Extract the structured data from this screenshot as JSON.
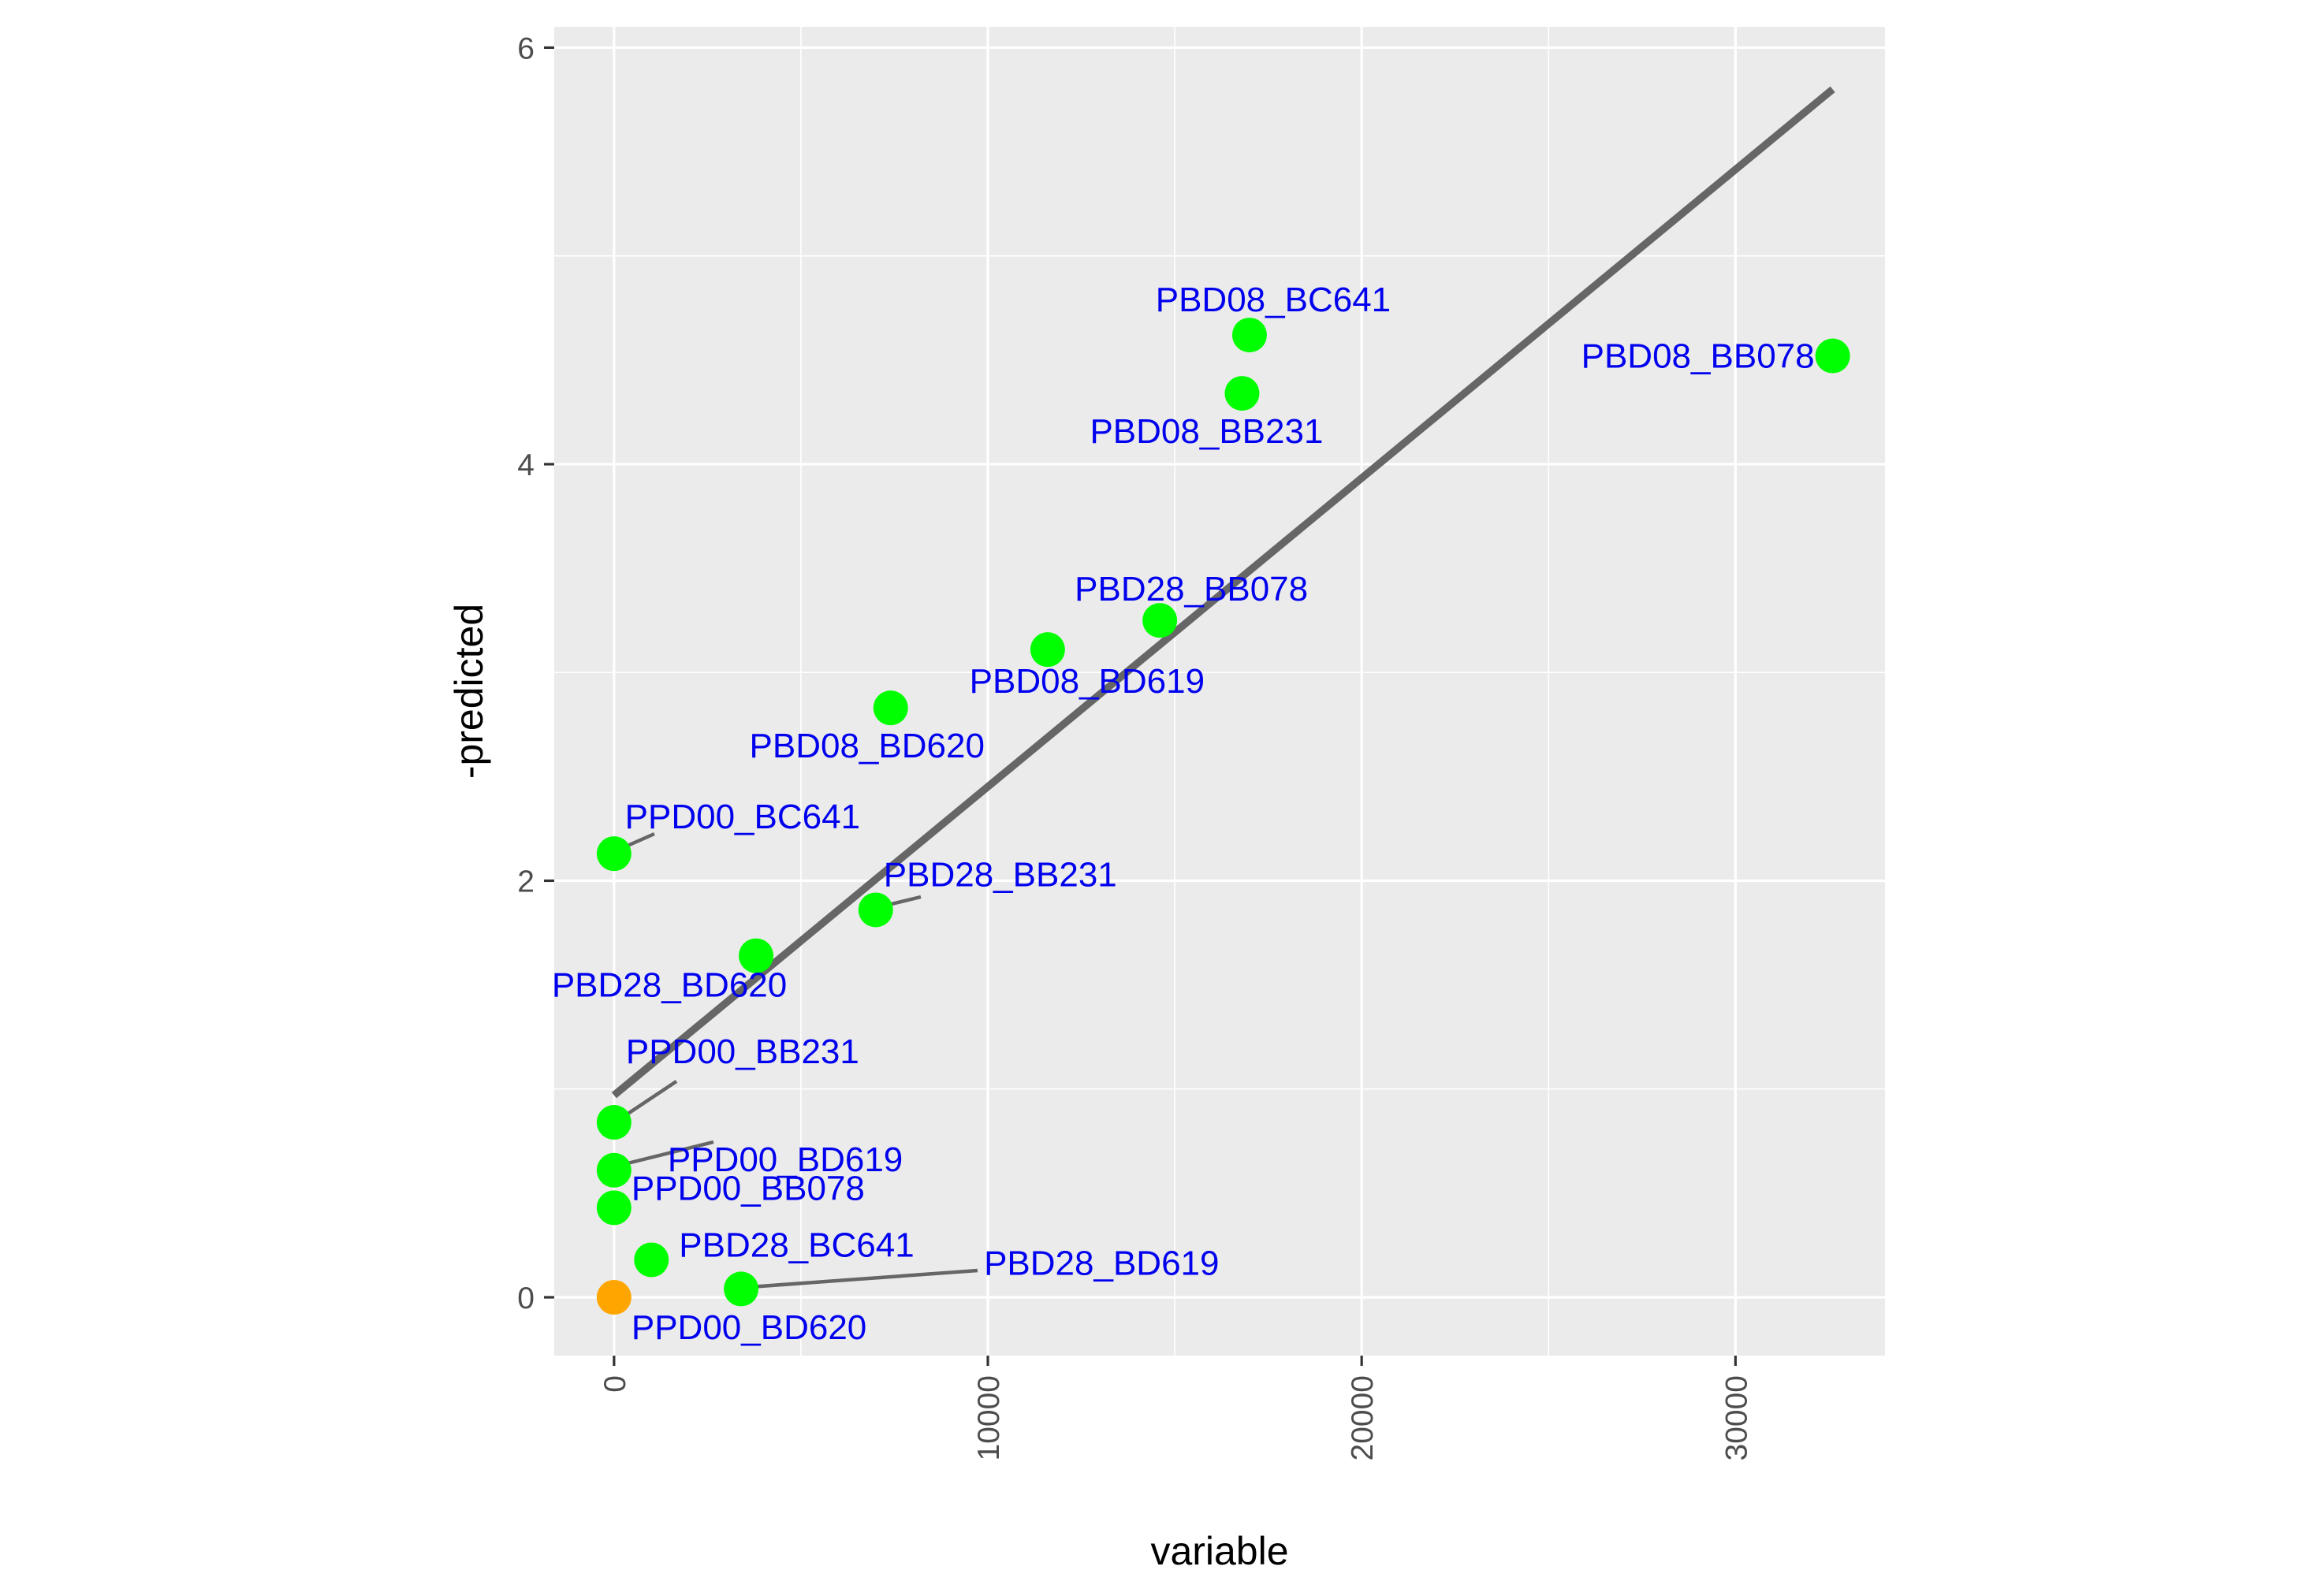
{
  "chart_data": {
    "type": "scatter",
    "title": "",
    "xlabel": "variable",
    "ylabel": "-predicted",
    "xlim": [
      -1600,
      34000
    ],
    "ylim": [
      -0.28,
      6.1
    ],
    "x_ticks": [
      0,
      10000,
      20000,
      30000
    ],
    "x_tick_labels": [
      "0",
      "10000",
      "20000",
      "30000"
    ],
    "y_ticks": [
      0,
      2,
      4,
      6
    ],
    "y_tick_labels": [
      "0",
      "2",
      "4",
      "6"
    ],
    "grid": true,
    "legend": "none",
    "fit_line": {
      "x": [
        0,
        32600
      ],
      "y": [
        0.97,
        5.8
      ],
      "color": "#666666"
    },
    "points": [
      {
        "label": "PBD08_BC641",
        "x": 17000,
        "y": 4.62,
        "color": "#00ff00"
      },
      {
        "label": "PBD08_BB078",
        "x": 32600,
        "y": 4.52,
        "color": "#00ff00"
      },
      {
        "label": "PBD08_BB231",
        "x": 16800,
        "y": 4.34,
        "color": "#00ff00"
      },
      {
        "label": "PBD28_BB078",
        "x": 14600,
        "y": 3.25,
        "color": "#00ff00"
      },
      {
        "label": "PBD08_BD619",
        "x": 11600,
        "y": 3.11,
        "color": "#00ff00"
      },
      {
        "label": "PBD08_BD620",
        "x": 7400,
        "y": 2.83,
        "color": "#00ff00"
      },
      {
        "label": "PPD00_BC641",
        "x": 0,
        "y": 2.13,
        "color": "#00ff00"
      },
      {
        "label": "PBD28_BB231",
        "x": 7000,
        "y": 1.86,
        "color": "#00ff00"
      },
      {
        "label": "PBD28_BD620",
        "x": 3800,
        "y": 1.64,
        "color": "#00ff00"
      },
      {
        "label": "PPD00_BB231",
        "x": 0,
        "y": 0.84,
        "color": "#00ff00"
      },
      {
        "label": "PPD00_BD619",
        "x": 0,
        "y": 0.61,
        "color": "#00ff00"
      },
      {
        "label": "PPD00_BB078",
        "x": 0,
        "y": 0.43,
        "color": "#00ff00"
      },
      {
        "label": "PBD28_BC641",
        "x": 1000,
        "y": 0.18,
        "color": "#00ff00"
      },
      {
        "label": "PBD28_BD619",
        "x": 3400,
        "y": 0.04,
        "color": "#00ff00"
      },
      {
        "label": "PPD00_BD620",
        "x": 0,
        "y": 0.0,
        "color": "#ffa500"
      }
    ]
  },
  "colors": {
    "panel_background": "#ebebeb",
    "grid_major": "#ffffff",
    "label_text": "#0000ee",
    "connector": "#666666"
  }
}
